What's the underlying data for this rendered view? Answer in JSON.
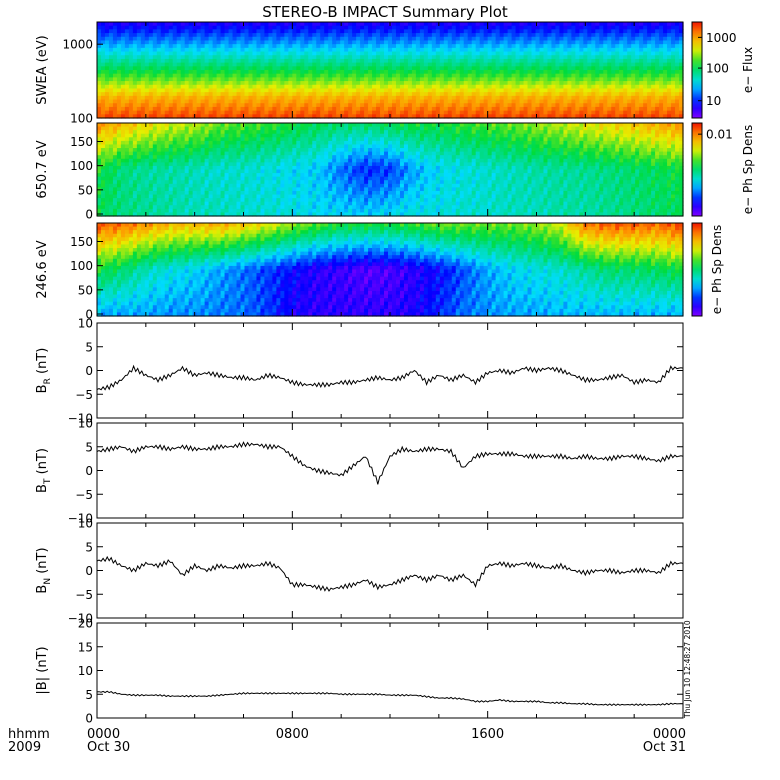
{
  "title": "STEREO-B IMPACT Summary Plot",
  "stamp": "Thu Jun 10 12:48:27 2010",
  "x_axis": {
    "row1_label": "hhmm",
    "row2_label": "2009",
    "ticks": [
      {
        "hour": 0,
        "label": "0000",
        "sub": "Oct 30"
      },
      {
        "hour": 8,
        "label": "0800",
        "sub": ""
      },
      {
        "hour": 16,
        "label": "1600",
        "sub": ""
      },
      {
        "hour": 24,
        "label": "0000",
        "sub": "Oct 31"
      }
    ]
  },
  "colorbars": {
    "swea": {
      "label": "e− Flux",
      "ticks": [
        "10",
        "100",
        "1000"
      ]
    },
    "pad650": {
      "label": "e− Ph Sp Dens",
      "ticks": [
        "0.01"
      ]
    },
    "pad246": {
      "label": "e− Ph Sp Dens",
      "ticks": []
    }
  },
  "chart_data": [
    {
      "type": "heatmap",
      "name": "swea",
      "ylabel": "SWEA (eV)",
      "yscale": "log",
      "ylim": [
        100,
        2000
      ],
      "yticks": [
        "100",
        "1000"
      ],
      "colorscale": "rainbow",
      "description_rows": [
        {
          "energy_eV": 100,
          "level": 0.94
        },
        {
          "energy_eV": 200,
          "level": 0.82
        },
        {
          "energy_eV": 400,
          "level": 0.62
        },
        {
          "energy_eV": 700,
          "level": 0.45
        },
        {
          "energy_eV": 1200,
          "level": 0.28
        },
        {
          "energy_eV": 1800,
          "level": 0.12
        }
      ]
    },
    {
      "type": "heatmap",
      "name": "pad650",
      "ylabel": "650.7 eV",
      "ylim": [
        0,
        180
      ],
      "yticks": [
        "0",
        "50",
        "100",
        "150"
      ],
      "colorscale": "rainbow",
      "x_hours": [
        0,
        1,
        2,
        3,
        4,
        5,
        6,
        7,
        8,
        9,
        10,
        11,
        12,
        13,
        14,
        15,
        16,
        17,
        18,
        19,
        20,
        21,
        22,
        23,
        24
      ],
      "level_top": [
        0.85,
        0.8,
        0.75,
        0.7,
        0.68,
        0.62,
        0.6,
        0.58,
        0.55,
        0.52,
        0.5,
        0.5,
        0.52,
        0.55,
        0.55,
        0.58,
        0.6,
        0.62,
        0.65,
        0.68,
        0.72,
        0.75,
        0.78,
        0.82,
        0.85
      ],
      "level_mid": [
        0.55,
        0.48,
        0.45,
        0.44,
        0.42,
        0.4,
        0.4,
        0.38,
        0.36,
        0.34,
        0.25,
        0.18,
        0.2,
        0.3,
        0.36,
        0.38,
        0.4,
        0.42,
        0.44,
        0.45,
        0.46,
        0.48,
        0.5,
        0.52,
        0.55
      ],
      "level_bottom": [
        0.52,
        0.48,
        0.46,
        0.44,
        0.42,
        0.42,
        0.4,
        0.4,
        0.38,
        0.36,
        0.35,
        0.34,
        0.36,
        0.38,
        0.38,
        0.4,
        0.4,
        0.42,
        0.42,
        0.44,
        0.44,
        0.46,
        0.48,
        0.5,
        0.52
      ]
    },
    {
      "type": "heatmap",
      "name": "pad246",
      "ylabel": "246.6 eV",
      "ylim": [
        0,
        180
      ],
      "yticks": [
        "0",
        "50",
        "100",
        "150"
      ],
      "colorscale": "rainbow",
      "x_hours": [
        0,
        1,
        2,
        3,
        4,
        5,
        6,
        7,
        8,
        9,
        10,
        11,
        12,
        13,
        14,
        15,
        16,
        17,
        18,
        19,
        20,
        21,
        22,
        23,
        24
      ],
      "level_top": [
        0.92,
        0.9,
        0.85,
        0.8,
        0.8,
        0.82,
        0.78,
        0.72,
        0.65,
        0.6,
        0.55,
        0.55,
        0.55,
        0.58,
        0.62,
        0.62,
        0.62,
        0.62,
        0.65,
        0.7,
        0.88,
        0.92,
        0.92,
        0.9,
        0.95
      ],
      "level_mid": [
        0.55,
        0.5,
        0.42,
        0.38,
        0.35,
        0.3,
        0.25,
        0.2,
        0.15,
        0.1,
        0.08,
        0.05,
        0.06,
        0.1,
        0.15,
        0.22,
        0.3,
        0.35,
        0.38,
        0.4,
        0.45,
        0.5,
        0.5,
        0.52,
        0.55
      ],
      "level_bottom": [
        0.3,
        0.3,
        0.3,
        0.28,
        0.28,
        0.26,
        0.25,
        0.2,
        0.12,
        0.1,
        0.1,
        0.1,
        0.1,
        0.12,
        0.18,
        0.25,
        0.28,
        0.3,
        0.3,
        0.32,
        0.32,
        0.32,
        0.32,
        0.32,
        0.32
      ]
    },
    {
      "type": "line",
      "name": "br",
      "ylabel": "B_R (nT)",
      "ylabel_main": "B",
      "ylabel_sub": "R",
      "ylabel_unit": " (nT)",
      "ylim": [
        -10,
        10
      ],
      "yticks": [
        "−10",
        "−5",
        "0",
        "5",
        "10"
      ],
      "ytick_values": [
        -10,
        -5,
        0,
        5,
        10
      ],
      "x_hours": [
        0,
        0.5,
        1,
        1.5,
        2,
        2.5,
        3,
        3.5,
        4,
        4.5,
        5,
        5.5,
        6,
        6.5,
        7,
        7.5,
        8,
        8.5,
        9,
        9.5,
        10,
        10.5,
        11,
        11.5,
        12,
        12.5,
        13,
        13.5,
        14,
        14.5,
        15,
        15.5,
        16,
        16.5,
        17,
        17.5,
        18,
        18.5,
        19,
        19.5,
        20,
        20.5,
        21,
        21.5,
        22,
        22.5,
        23,
        23.5,
        24
      ],
      "values": [
        -4,
        -3.5,
        -2,
        0.5,
        -1,
        -2,
        -1,
        0.5,
        -1,
        -0.5,
        -1,
        -1.5,
        -1.5,
        -2,
        -1,
        -1.5,
        -2.5,
        -3,
        -3,
        -3,
        -2.5,
        -2.5,
        -2,
        -1.5,
        -2,
        -1.5,
        0,
        -2.5,
        -1,
        -2,
        -1,
        -2.5,
        -0.5,
        0,
        -0.5,
        0.5,
        0,
        0.5,
        0,
        -1,
        -2,
        -2,
        -1.5,
        -1,
        -2.5,
        -2,
        -2.5,
        0.5,
        0.5
      ]
    },
    {
      "type": "line",
      "name": "bt",
      "ylabel": "B_T (nT)",
      "ylabel_main": "B",
      "ylabel_sub": "T",
      "ylabel_unit": " (nT)",
      "ylim": [
        -10,
        10
      ],
      "yticks": [
        "−10",
        "−5",
        "0",
        "5",
        "10"
      ],
      "ytick_values": [
        -10,
        -5,
        0,
        5,
        10
      ],
      "x_hours": [
        0,
        0.5,
        1,
        1.5,
        2,
        2.5,
        3,
        3.5,
        4,
        4.5,
        5,
        5.5,
        6,
        6.5,
        7,
        7.5,
        8,
        8.5,
        9,
        9.5,
        10,
        10.5,
        11,
        11.5,
        12,
        12.5,
        13,
        13.5,
        14,
        14.5,
        15,
        15.5,
        16,
        16.5,
        17,
        17.5,
        18,
        18.5,
        19,
        19.5,
        20,
        20.5,
        21,
        21.5,
        22,
        22.5,
        23,
        23.5,
        24
      ],
      "values": [
        4,
        4.5,
        5,
        4,
        5,
        5,
        4.5,
        5,
        4.5,
        4.5,
        5,
        5,
        5.5,
        5.5,
        5,
        5,
        3,
        1,
        0,
        -0.5,
        -1,
        1,
        3,
        -2.5,
        3,
        4.5,
        4,
        4.5,
        4.5,
        4,
        0.5,
        3,
        3.5,
        3.5,
        3.5,
        3,
        3,
        3,
        3,
        2.5,
        3,
        2.5,
        2.5,
        3,
        3,
        2.5,
        2,
        3,
        3
      ]
    },
    {
      "type": "line",
      "name": "bn",
      "ylabel": "B_N (nT)",
      "ylabel_main": "B",
      "ylabel_sub": "N",
      "ylabel_unit": " (nT)",
      "ylim": [
        -10,
        10
      ],
      "yticks": [
        "−10",
        "−5",
        "0",
        "5",
        "10"
      ],
      "ytick_values": [
        -10,
        -5,
        0,
        5,
        10
      ],
      "x_hours": [
        0,
        0.5,
        1,
        1.5,
        2,
        2.5,
        3,
        3.5,
        4,
        4.5,
        5,
        5.5,
        6,
        6.5,
        7,
        7.5,
        8,
        8.5,
        9,
        9.5,
        10,
        10.5,
        11,
        11.5,
        12,
        12.5,
        13,
        13.5,
        14,
        14.5,
        15,
        15.5,
        16,
        16.5,
        17,
        17.5,
        18,
        18.5,
        19,
        19.5,
        20,
        20.5,
        21,
        21.5,
        22,
        22.5,
        23,
        23.5,
        24
      ],
      "values": [
        2,
        2.5,
        1,
        0,
        1.5,
        1,
        2,
        -1,
        1,
        0,
        1,
        0.5,
        1,
        1,
        1.5,
        0.5,
        -3,
        -3,
        -3.5,
        -4,
        -3.5,
        -3,
        -2,
        -3.5,
        -3,
        -2,
        -1,
        -2,
        -1,
        -2,
        -1,
        -3,
        1,
        1.5,
        1,
        1.5,
        1,
        0.5,
        1,
        0,
        -0.5,
        0,
        0,
        -0.5,
        0,
        0,
        -0.5,
        1.5,
        1.5
      ]
    },
    {
      "type": "line",
      "name": "bmag",
      "ylabel": "|B| (nT)",
      "ylabel_main": "|B|",
      "ylabel_sub": "",
      "ylabel_unit": " (nT)",
      "ylim": [
        0,
        20
      ],
      "yticks": [
        "0",
        "5",
        "10",
        "15",
        "20"
      ],
      "ytick_values": [
        0,
        5,
        10,
        15,
        20
      ],
      "x_hours": [
        0,
        0.5,
        1,
        1.5,
        2,
        2.5,
        3,
        3.5,
        4,
        4.5,
        5,
        5.5,
        6,
        6.5,
        7,
        7.5,
        8,
        8.5,
        9,
        9.5,
        10,
        10.5,
        11,
        11.5,
        12,
        12.5,
        13,
        13.5,
        14,
        14.5,
        15,
        15.5,
        16,
        16.5,
        17,
        17.5,
        18,
        18.5,
        19,
        19.5,
        20,
        20.5,
        21,
        21.5,
        22,
        22.5,
        23,
        23.5,
        24
      ],
      "values": [
        5.5,
        5.5,
        5,
        4.8,
        4.8,
        4.8,
        4.6,
        4.6,
        4.6,
        4.6,
        4.8,
        5,
        5.2,
        5.2,
        5.2,
        5.2,
        5.2,
        5.2,
        5.2,
        5.2,
        5,
        5,
        5,
        5,
        4.8,
        4.8,
        4.8,
        4.5,
        4.2,
        4.2,
        4,
        3.5,
        3.5,
        3.8,
        3.5,
        3.5,
        3.5,
        3.2,
        3.2,
        3,
        3,
        2.8,
        2.8,
        2.8,
        2.8,
        2.8,
        2.8,
        3,
        3
      ]
    }
  ]
}
